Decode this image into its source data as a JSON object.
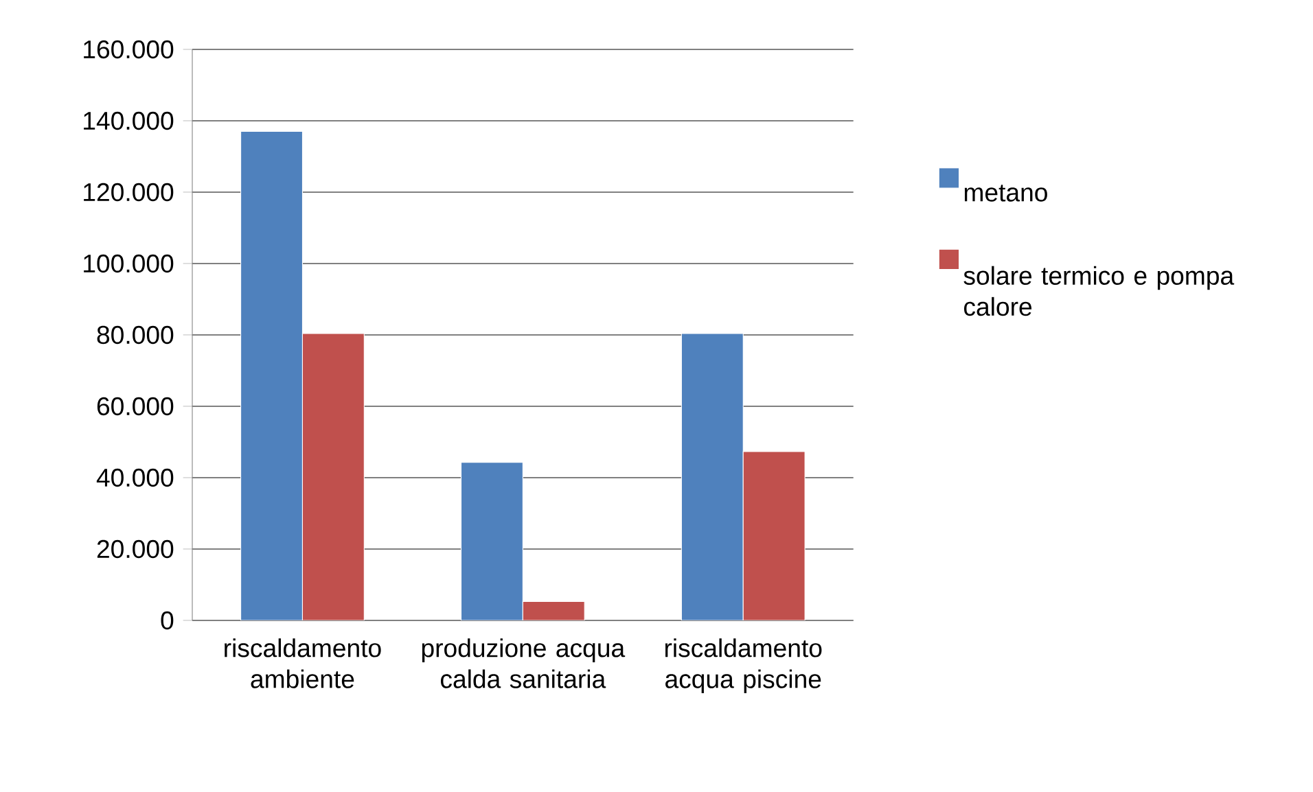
{
  "chart_data": {
    "type": "bar",
    "categories": [
      "riscaldamento ambiente",
      "produzione acqua calda sanitaria",
      "riscaldamento acqua piscine"
    ],
    "series": [
      {
        "name": "metano",
        "color": "#4f81bd",
        "values": [
          137000,
          44300,
          80400
        ]
      },
      {
        "name": "solare termico e pompa calore",
        "color": "#c0504d",
        "values": [
          80400,
          5300,
          47300
        ]
      }
    ],
    "ylim": [
      0,
      160000
    ],
    "yticks": [
      0,
      {
        "value": 20000,
        "label": "20.000"
      },
      {
        "value": 40000,
        "label": "40.000"
      },
      {
        "value": 60000,
        "label": "60.000"
      },
      {
        "value": 80000,
        "label": "80.000"
      },
      {
        "value": 100000,
        "label": "100.000"
      },
      {
        "value": 120000,
        "label": "120.000"
      },
      {
        "value": 140000,
        "label": "140.000"
      },
      {
        "value": 160000,
        "label": "160.000"
      }
    ],
    "grid": "y",
    "legend": "right"
  }
}
